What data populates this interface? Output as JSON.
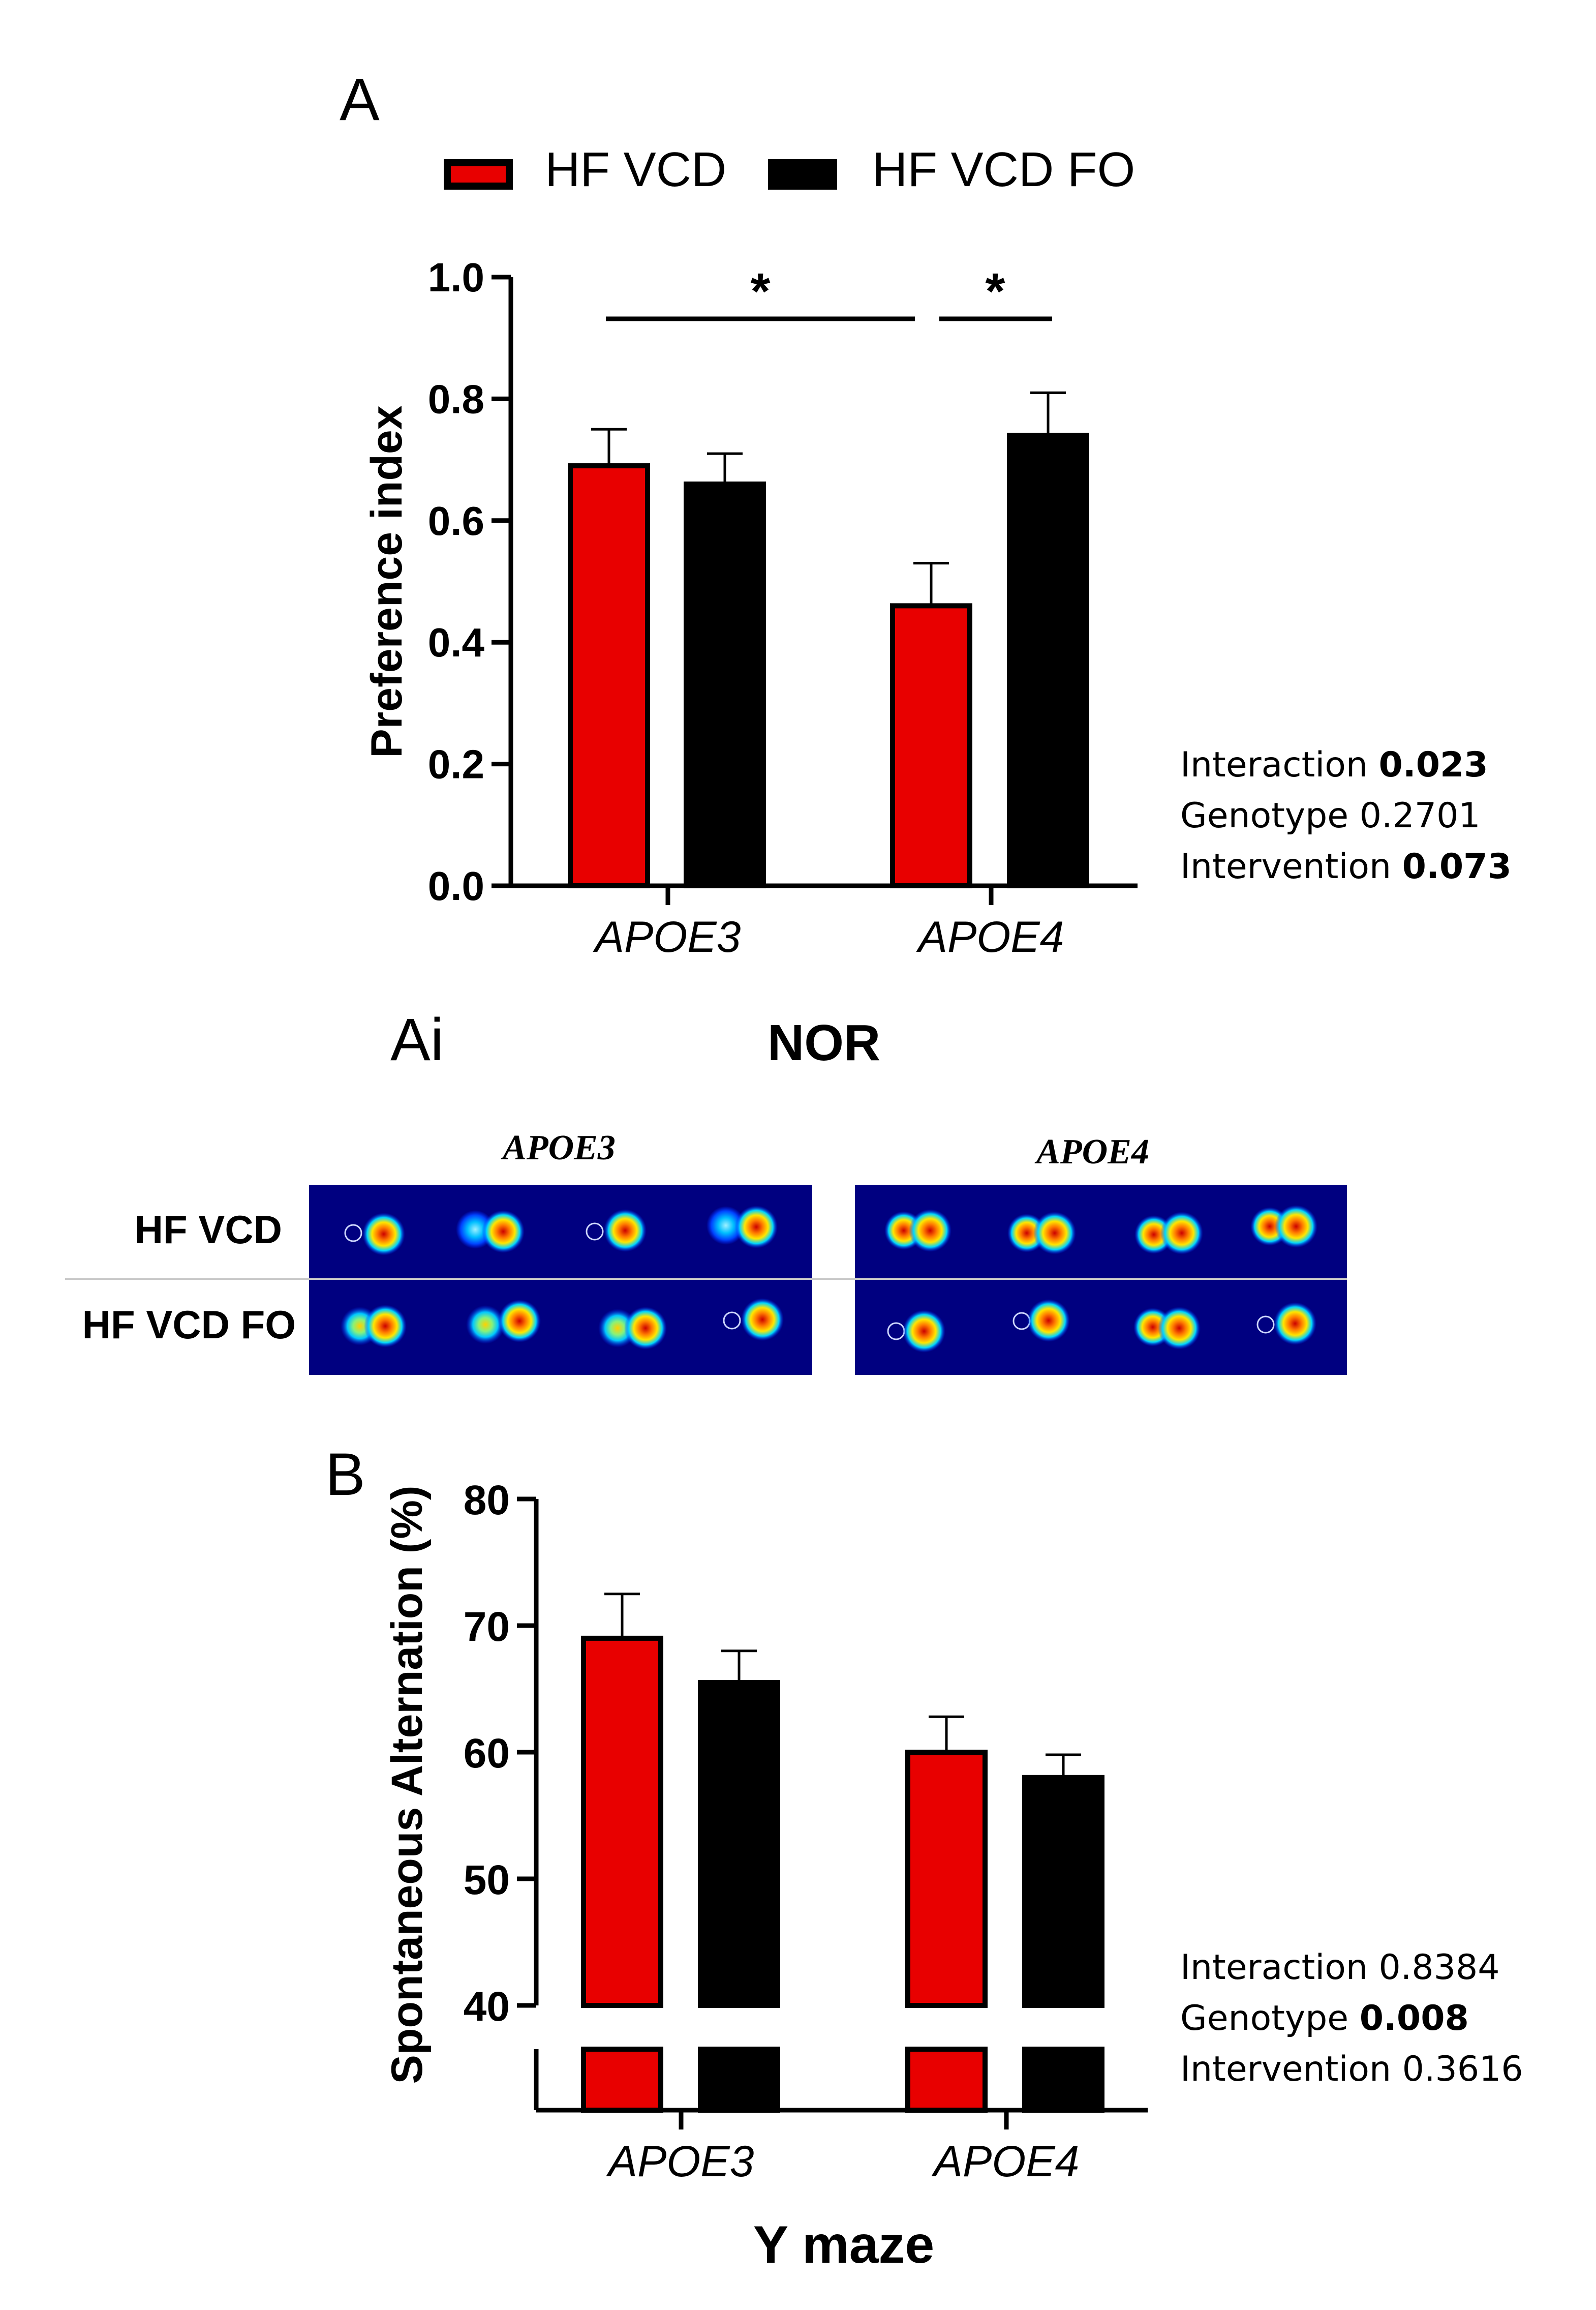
{
  "panel_a_label": "A",
  "panel_ai_label": "Ai",
  "panel_b_label": "B",
  "legend": [
    {
      "label": "HF VCD",
      "color": "#e80000"
    },
    {
      "label": "HF VCD FO",
      "color": "#000000"
    }
  ],
  "chart_data": [
    {
      "type": "bar",
      "title": "",
      "categories": [
        "APOE3",
        "APOE4"
      ],
      "series": [
        {
          "name": "HF VCD",
          "color": "#e80000",
          "values": [
            0.69,
            0.46
          ],
          "errors": [
            0.06,
            0.07
          ]
        },
        {
          "name": "HF VCD FO",
          "color": "#000000",
          "values": [
            0.66,
            0.74
          ],
          "errors": [
            0.05,
            0.07
          ]
        }
      ],
      "xlabel": "",
      "ylabel": "Preference index",
      "ylim": [
        0.0,
        1.0
      ],
      "yticks": [
        "0.0",
        "0.2",
        "0.4",
        "0.6",
        "0.8",
        "1.0"
      ],
      "significance": [
        {
          "between": "APOE3 vs APOE4 HF VCD",
          "label": "*"
        },
        {
          "between": "APOE4 HF VCD vs HF VCD FO",
          "label": "*"
        }
      ],
      "stats": [
        {
          "label": "Interaction",
          "value": "0.023",
          "bold": true
        },
        {
          "label": "Genotype",
          "value": "0.2701",
          "bold": false
        },
        {
          "label": "Intervention",
          "value": "0.073",
          "bold": true
        }
      ]
    },
    {
      "type": "bar",
      "title": "Y maze",
      "categories": [
        "APOE3",
        "APOE4"
      ],
      "series": [
        {
          "name": "HF VCD",
          "color": "#e80000",
          "values": [
            69,
            60
          ],
          "errors": [
            3.5,
            2.8
          ]
        },
        {
          "name": "HF VCD FO",
          "color": "#000000",
          "values": [
            65.5,
            58
          ],
          "errors": [
            2.5,
            1.8
          ]
        }
      ],
      "xlabel": "Y maze",
      "ylabel": "Spontaneous Alternation (%)",
      "ylim": [
        40,
        80
      ],
      "axis_break": true,
      "yticks": [
        "40",
        "50",
        "60",
        "70",
        "80"
      ],
      "stats": [
        {
          "label": "Interaction",
          "value": "0.8384",
          "bold": false
        },
        {
          "label": "Genotype",
          "value": "0.008",
          "bold": true
        },
        {
          "label": "Intervention",
          "value": "0.3616",
          "bold": false
        }
      ]
    }
  ],
  "heatmaps": {
    "title": "NOR",
    "columns": [
      "APOE3",
      "APOE4"
    ],
    "rows": [
      "HF VCD",
      "HF VCD FO"
    ]
  }
}
